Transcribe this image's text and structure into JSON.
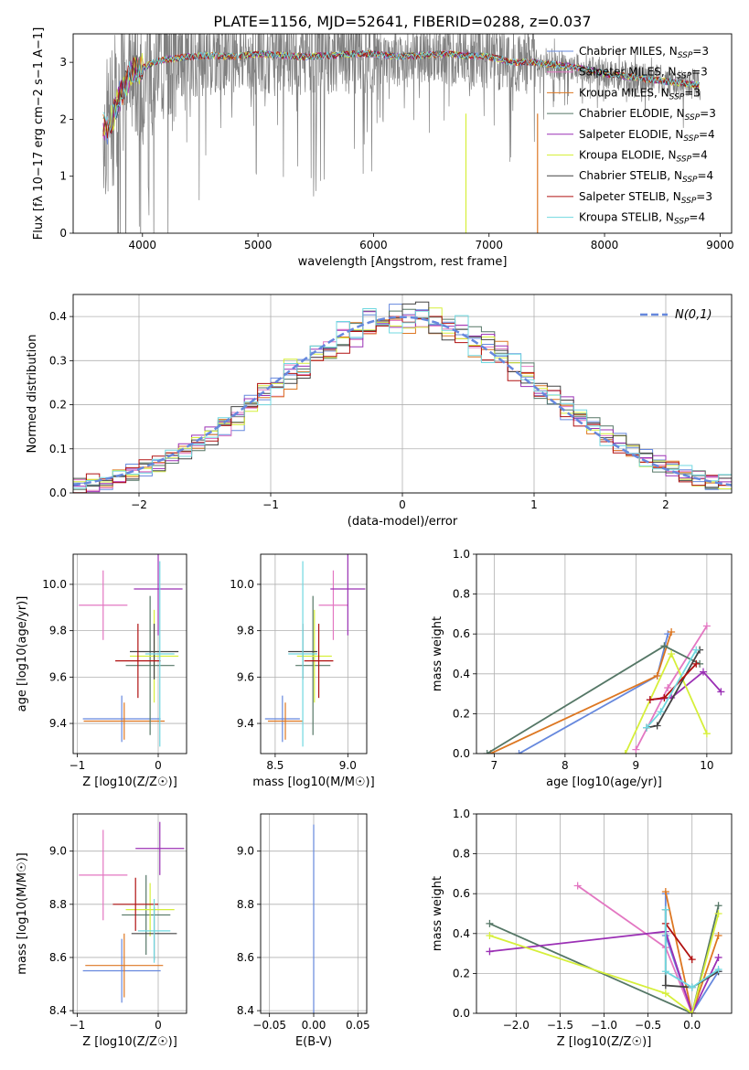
{
  "figure": {
    "title": "PLATE=1156, MJD=52641, FIBERID=0288, z=0.037",
    "colors": [
      "#6688dd",
      "#e377c2",
      "#dd7722",
      "#557766",
      "#9b30b5",
      "#d6ef3a",
      "#444444",
      "#b01010",
      "#70d8e0"
    ],
    "spectrum_color": "#808080"
  },
  "chart_data": [
    {
      "id": "spectrum",
      "type": "line",
      "xlabel": "wavelength [Angstrom, rest frame]",
      "ylabel": "Flux [f",
      "ylabel_full": "Flux [fλ 10−17 erg cm−2 s−1 A−1]",
      "xlim": [
        3400,
        9100
      ],
      "ylim": [
        0,
        3.5
      ],
      "xticks": [
        4000,
        5000,
        6000,
        7000,
        8000,
        9000
      ],
      "yticks": [
        0,
        1,
        2,
        3
      ],
      "grid": false,
      "legend_position": "top-right",
      "legend": [
        {
          "name": "Chabrier MILES",
          "nssp": "3"
        },
        {
          "name": "Salpeter MILES",
          "nssp": "3"
        },
        {
          "name": "Kroupa MILES",
          "nssp": "3"
        },
        {
          "name": "Chabrier ELODIE",
          "nssp": "3"
        },
        {
          "name": "Salpeter ELODIE",
          "nssp": "4"
        },
        {
          "name": "Kroupa ELODIE",
          "nssp": "4"
        },
        {
          "name": "Chabrier STELIB",
          "nssp": "4"
        },
        {
          "name": "Salpeter STELIB",
          "nssp": "3"
        },
        {
          "name": "Kroupa STELIB",
          "nssp": "4"
        }
      ],
      "model_continuum": {
        "x": [
          3650,
          3700,
          3800,
          3900,
          4000,
          4100,
          4200,
          4400,
          4600,
          4800,
          5000,
          5200,
          5400,
          5600,
          5800,
          6000,
          6200,
          6400,
          6600,
          6800,
          7000,
          7200,
          7400,
          7600,
          7800,
          8000,
          8200,
          8400,
          8600,
          8800
        ],
        "y": [
          1.9,
          1.8,
          2.4,
          2.8,
          2.9,
          3.0,
          3.05,
          3.1,
          3.12,
          3.1,
          3.15,
          3.12,
          3.1,
          3.12,
          3.14,
          3.15,
          3.1,
          3.12,
          3.15,
          3.12,
          3.1,
          3.0,
          3.0,
          2.95,
          2.9,
          2.8,
          2.75,
          2.7,
          2.65,
          2.6
        ]
      }
    },
    {
      "id": "residual_hist",
      "type": "line",
      "xlabel": "(data-model)/error",
      "ylabel": "Normed distribution",
      "xlim": [
        -2.5,
        2.5
      ],
      "ylim": [
        0,
        0.45
      ],
      "xticks": [
        -2,
        -1,
        0,
        1,
        2
      ],
      "yticks": [
        0.0,
        0.1,
        0.2,
        0.3,
        0.4
      ],
      "grid": true,
      "legend_position": "top-right",
      "legend_label": "N(0,1)",
      "bin_width": 0.1
    },
    {
      "id": "age_vs_Z",
      "type": "scatter",
      "xlabel": "Z [log10(Z/Z☉)]",
      "ylabel": "age [log10(age/yr)]",
      "xlim": [
        -1.05,
        0.35
      ],
      "ylim": [
        9.27,
        10.13
      ],
      "xticks": [
        -1,
        0
      ],
      "yticks": [
        9.4,
        9.6,
        9.8,
        10.0
      ],
      "grid": true,
      "points": [
        {
          "x": -0.45,
          "y": 9.42,
          "xerr": 0.48,
          "yerr": 0.1
        },
        {
          "x": -0.68,
          "y": 9.91,
          "xerr": 0.3,
          "yerr": 0.15
        },
        {
          "x": -0.42,
          "y": 9.41,
          "xerr": 0.5,
          "yerr": 0.08
        },
        {
          "x": -0.1,
          "y": 9.65,
          "xerr": 0.3,
          "yerr": 0.3
        },
        {
          "x": 0.0,
          "y": 9.98,
          "xerr": 0.3,
          "yerr": 0.2
        },
        {
          "x": -0.05,
          "y": 9.69,
          "xerr": 0.3,
          "yerr": 0.2
        },
        {
          "x": -0.05,
          "y": 9.71,
          "xerr": 0.3,
          "yerr": 0.12
        },
        {
          "x": -0.25,
          "y": 9.67,
          "xerr": 0.28,
          "yerr": 0.16
        },
        {
          "x": 0.02,
          "y": 9.7,
          "xerr": 0.18,
          "yerr": 0.4
        }
      ]
    },
    {
      "id": "age_vs_mass",
      "type": "scatter",
      "xlabel": "mass [log10(M/M☉)]",
      "xlim": [
        8.4,
        9.13
      ],
      "ylim": [
        9.27,
        10.13
      ],
      "xticks": [
        8.5,
        9.0
      ],
      "yticks": [
        9.4,
        9.6,
        9.8,
        10.0
      ],
      "grid": true,
      "points": [
        {
          "x": 8.55,
          "y": 9.42,
          "xerr": 0.12,
          "yerr": 0.1
        },
        {
          "x": 8.9,
          "y": 9.91,
          "xerr": 0.1,
          "yerr": 0.15
        },
        {
          "x": 8.57,
          "y": 9.41,
          "xerr": 0.12,
          "yerr": 0.08
        },
        {
          "x": 8.76,
          "y": 9.65,
          "xerr": 0.12,
          "yerr": 0.3
        },
        {
          "x": 9.0,
          "y": 9.98,
          "xerr": 0.12,
          "yerr": 0.2
        },
        {
          "x": 8.77,
          "y": 9.69,
          "xerr": 0.12,
          "yerr": 0.2
        },
        {
          "x": 8.69,
          "y": 9.71,
          "xerr": 0.1,
          "yerr": 0.12
        },
        {
          "x": 8.8,
          "y": 9.67,
          "xerr": 0.1,
          "yerr": 0.16
        },
        {
          "x": 8.69,
          "y": 9.7,
          "xerr": 0.1,
          "yerr": 0.4
        }
      ]
    },
    {
      "id": "weight_vs_age",
      "type": "line",
      "xlabel": "age [log10(age/yr)]",
      "ylabel": "mass weight",
      "xlim": [
        6.75,
        10.35
      ],
      "ylim": [
        0.0,
        1.0
      ],
      "xticks": [
        7,
        8,
        9,
        10
      ],
      "yticks": [
        0.0,
        0.2,
        0.4,
        0.6,
        0.8,
        1.0
      ],
      "grid": true,
      "series": [
        {
          "x": [
            7.35,
            9.3,
            9.45
          ],
          "y": [
            0.0,
            0.39,
            0.6
          ]
        },
        {
          "x": [
            9.0,
            9.45,
            10.0
          ],
          "y": [
            0.02,
            0.33,
            0.64
          ]
        },
        {
          "x": [
            6.95,
            9.3,
            9.5
          ],
          "y": [
            0.0,
            0.39,
            0.61
          ]
        },
        {
          "x": [
            6.9,
            9.4,
            9.9
          ],
          "y": [
            0.0,
            0.54,
            0.45
          ]
        },
        {
          "x": [
            9.2,
            9.5,
            9.95,
            10.2
          ],
          "y": [
            0.27,
            0.28,
            0.41,
            0.31
          ]
        },
        {
          "x": [
            8.85,
            9.5,
            10.0
          ],
          "y": [
            0.0,
            0.5,
            0.1
          ]
        },
        {
          "x": [
            9.15,
            9.3,
            9.9
          ],
          "y": [
            0.13,
            0.14,
            0.52
          ]
        },
        {
          "x": [
            9.2,
            9.4,
            9.85
          ],
          "y": [
            0.27,
            0.28,
            0.45
          ]
        },
        {
          "x": [
            9.15,
            9.35,
            9.85
          ],
          "y": [
            0.13,
            0.21,
            0.52
          ]
        }
      ]
    },
    {
      "id": "mass_vs_Z",
      "type": "scatter",
      "xlabel": "Z [log10(Z/Z☉)]",
      "ylabel": "mass [log10(M/M☉)]",
      "xlim": [
        -1.05,
        0.35
      ],
      "ylim": [
        8.39,
        9.14
      ],
      "xticks": [
        -1,
        0
      ],
      "yticks": [
        8.4,
        8.6,
        8.8,
        9.0
      ],
      "grid": true,
      "points": [
        {
          "x": -0.45,
          "y": 8.55,
          "xerr": 0.48,
          "yerr": 0.12
        },
        {
          "x": -0.68,
          "y": 8.91,
          "xerr": 0.3,
          "yerr": 0.17
        },
        {
          "x": -0.42,
          "y": 8.57,
          "xerr": 0.48,
          "yerr": 0.12
        },
        {
          "x": -0.15,
          "y": 8.76,
          "xerr": 0.3,
          "yerr": 0.15
        },
        {
          "x": 0.02,
          "y": 9.01,
          "xerr": 0.3,
          "yerr": 0.1
        },
        {
          "x": -0.1,
          "y": 8.78,
          "xerr": 0.3,
          "yerr": 0.1
        },
        {
          "x": -0.05,
          "y": 8.69,
          "xerr": 0.28,
          "yerr": 0.1
        },
        {
          "x": -0.28,
          "y": 8.8,
          "xerr": 0.28,
          "yerr": 0.1
        },
        {
          "x": -0.05,
          "y": 8.7,
          "xerr": 0.2,
          "yerr": 0.12
        }
      ]
    },
    {
      "id": "mass_vs_EBV",
      "type": "scatter",
      "xlabel": "E(B-V)",
      "xlim": [
        -0.06,
        0.06
      ],
      "ylim": [
        8.39,
        9.14
      ],
      "xticks": [
        -0.05,
        0.0,
        0.05
      ],
      "yticks": [
        8.4,
        8.6,
        8.8,
        9.0
      ],
      "grid": true,
      "points": [
        {
          "x": 0.0,
          "y": 8.7,
          "yerr": 0.4
        }
      ]
    },
    {
      "id": "weight_vs_Z",
      "type": "line",
      "xlabel": "Z [log10(Z/Z☉)]",
      "ylabel": "mass weight",
      "xlim": [
        -2.45,
        0.45
      ],
      "ylim": [
        0.0,
        1.0
      ],
      "xticks": [
        -2.0,
        -1.5,
        -1.0,
        -0.5,
        0.0
      ],
      "yticks": [
        0.0,
        0.2,
        0.4,
        0.6,
        0.8,
        1.0
      ],
      "grid": true,
      "series": [
        {
          "x": [
            -0.3,
            -0.3,
            0.0,
            0.3
          ],
          "y": [
            0.6,
            0.39,
            0.0,
            0.21
          ]
        },
        {
          "x": [
            -1.3,
            -0.3,
            0.0
          ],
          "y": [
            0.64,
            0.33,
            0.0
          ]
        },
        {
          "x": [
            -0.3,
            0.0,
            0.3
          ],
          "y": [
            0.61,
            0.0,
            0.39
          ]
        },
        {
          "x": [
            -2.3,
            0.0,
            0.3
          ],
          "y": [
            0.45,
            0.0,
            0.54
          ]
        },
        {
          "x": [
            -2.3,
            -0.3,
            0.0,
            0.3
          ],
          "y": [
            0.31,
            0.41,
            0.0,
            0.28
          ]
        },
        {
          "x": [
            -2.3,
            -0.3,
            0.0,
            0.3
          ],
          "y": [
            0.39,
            0.1,
            0.0,
            0.5
          ]
        },
        {
          "x": [
            -0.3,
            -0.3,
            0.0,
            0.3
          ],
          "y": [
            0.52,
            0.14,
            0.13,
            0.21
          ]
        },
        {
          "x": [
            -0.3,
            0.0
          ],
          "y": [
            0.45,
            0.27
          ]
        },
        {
          "x": [
            -0.3,
            -0.3,
            0.0,
            0.3
          ],
          "y": [
            0.52,
            0.21,
            0.13,
            0.22
          ]
        }
      ]
    }
  ]
}
